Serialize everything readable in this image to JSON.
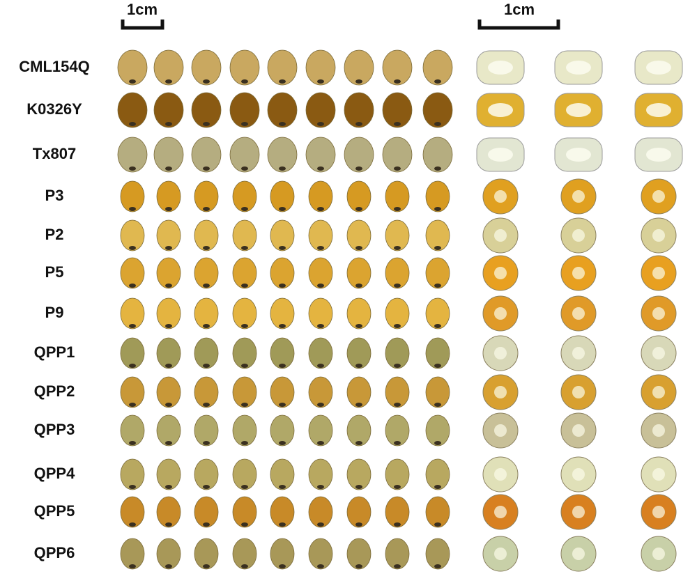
{
  "scale_bars": {
    "left": "1cm",
    "right": "1cm"
  },
  "rows": [
    "CML154Q",
    "K0326Y",
    "Tx807",
    "P3",
    "P2",
    "P5",
    "P9",
    "QPP1",
    "QPP2",
    "QPP3",
    "QPP4",
    "QPP5",
    "QPP6"
  ]
}
